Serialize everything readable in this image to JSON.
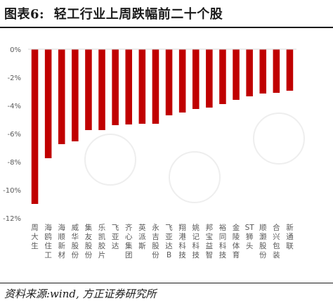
{
  "header": {
    "title_prefix": "图表",
    "title_number": "6:",
    "title_text": "轻工行业上周跌幅前二十个股"
  },
  "footer": {
    "source": "资料来源:wind, 方正证券研究所"
  },
  "colors": {
    "bar": "#c00000",
    "axis": "#d9d9d9",
    "text": "#595959"
  },
  "chart_data": {
    "type": "bar",
    "title": "",
    "xlabel": "",
    "ylabel": "",
    "ylim": [
      -12,
      0
    ],
    "yticks": [
      0,
      -2,
      -4,
      -6,
      -8,
      -10,
      -12
    ],
    "ytick_labels": [
      "0%",
      "-2%",
      "-4%",
      "-6%",
      "-8%",
      "-10%",
      "-12%"
    ],
    "grid": false,
    "categories": [
      "周大生",
      "海鸥住工",
      "海顺新材",
      "威华股份",
      "集友股份",
      "乐凯胶片",
      "飞亚达",
      "齐心集团",
      "英派斯",
      "永吉股份",
      "飞亚达B",
      "翔港科技",
      "姚记科技",
      "邦宝益智",
      "裕同科技",
      "金陵体育",
      "ST狮头",
      "顺灏股份",
      "合兴包装",
      "新通联"
    ],
    "values": [
      -11.0,
      -7.75,
      -6.75,
      -6.55,
      -5.75,
      -5.75,
      -5.4,
      -5.35,
      -5.3,
      -5.3,
      -4.7,
      -4.5,
      -4.25,
      -4.15,
      -3.9,
      -3.6,
      -3.35,
      -3.15,
      -3.1,
      -2.95
    ]
  }
}
